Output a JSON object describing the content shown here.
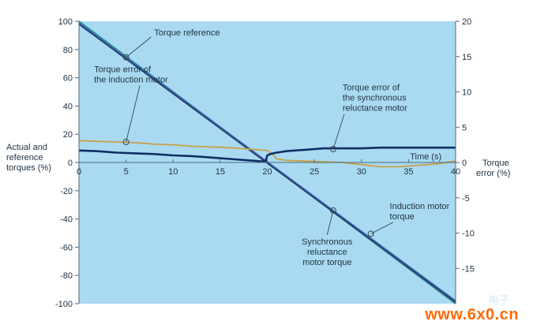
{
  "chart_data": {
    "type": "line",
    "xlabel": "Time (s)",
    "ylabel_left": "Actual and reference torques (%)",
    "ylabel_left_lines": [
      "Actual and",
      "reference",
      "torques (%)"
    ],
    "ylabel_right_lines": [
      "Torque",
      "error (%)"
    ],
    "xlim": [
      0,
      40
    ],
    "ylim_left": [
      -100,
      100
    ],
    "ylim_right": [
      -20,
      20
    ],
    "x_ticks": [
      0,
      5,
      10,
      15,
      20,
      25,
      30,
      35,
      40
    ],
    "y_left_ticks": [
      -100,
      -80,
      -60,
      -40,
      -20,
      0,
      20,
      40,
      60,
      80,
      100
    ],
    "y_right_ticks": [
      -15,
      -10,
      -5,
      0,
      5,
      10,
      15,
      20
    ],
    "colors": {
      "background": "#a9daf1",
      "torque_reference": "#2c9a9c",
      "induction_motor_torque": "#2a3a5e",
      "synchronous_reluctance_motor_torque": "#3a5fb0",
      "error_induction_motor": "#c9a24a",
      "error_synchronous_reluctance_motor": "#0f2f66"
    },
    "series": [
      {
        "name": "Torque reference",
        "axis": "left",
        "x": [
          0,
          40
        ],
        "y": [
          100,
          -100
        ]
      },
      {
        "name": "Induction motor torque",
        "axis": "left",
        "x": [
          0,
          40
        ],
        "y": [
          98,
          -99
        ]
      },
      {
        "name": "Synchronous reluctance motor torque",
        "axis": "left",
        "x": [
          0,
          40
        ],
        "y": [
          99,
          -98
        ]
      },
      {
        "name": "Torque error of the induction motor",
        "axis": "right",
        "x": [
          0,
          2,
          4,
          6,
          8,
          10,
          12,
          14,
          16,
          18,
          19,
          20,
          20.5,
          21,
          22,
          24,
          26,
          28,
          30,
          32,
          34,
          36,
          38,
          40
        ],
        "y": [
          3.1,
          3.0,
          2.9,
          2.8,
          2.6,
          2.5,
          2.3,
          2.2,
          2.1,
          1.9,
          1.8,
          1.7,
          1.3,
          0.5,
          0.3,
          0.2,
          0.1,
          0.0,
          -0.3,
          -0.6,
          -0.6,
          -0.4,
          -0.2,
          0.2
        ]
      },
      {
        "name": "Torque error of the synchronous reluctance motor",
        "axis": "right",
        "x": [
          0,
          2,
          4,
          6,
          8,
          10,
          12,
          14,
          16,
          18,
          19,
          19.8,
          20,
          20.3,
          21,
          22,
          24,
          26,
          28,
          30,
          32,
          34,
          36,
          38,
          40
        ],
        "y": [
          1.7,
          1.6,
          1.4,
          1.3,
          1.2,
          1.0,
          0.9,
          0.7,
          0.5,
          0.3,
          0.2,
          0.1,
          1.0,
          1.2,
          1.4,
          1.6,
          1.8,
          2.0,
          2.0,
          2.0,
          2.1,
          2.1,
          2.1,
          2.1,
          2.1
        ]
      }
    ],
    "annotations": [
      {
        "id": "ann-torque-reference",
        "lines": [
          "Torque reference"
        ],
        "point": {
          "x": 5,
          "y": 74.5,
          "axis": "left"
        },
        "text_anchor": {
          "x": 8,
          "y": 90,
          "axis": "left"
        }
      },
      {
        "id": "ann-error-induction",
        "lines": [
          "Torque error of",
          "the induction motor"
        ],
        "point": {
          "x": 5,
          "y": 2.9,
          "axis": "right"
        },
        "text_anchor": {
          "x": 1.6,
          "y": 12.8,
          "axis": "right"
        }
      },
      {
        "id": "ann-error-synrm",
        "lines": [
          "Torque error of",
          "the synchronous",
          "reluctance motor"
        ],
        "point": {
          "x": 27,
          "y": 1.9,
          "axis": "right"
        },
        "text_anchor": {
          "x": 28,
          "y": 10.2,
          "axis": "right"
        }
      },
      {
        "id": "ann-induction-torque",
        "lines": [
          "Induction motor",
          "torque"
        ],
        "point": {
          "x": 31,
          "y": -50.5,
          "axis": "left"
        },
        "text_anchor": {
          "x": 33,
          "y": -33,
          "axis": "left"
        }
      },
      {
        "id": "ann-synrm-torque",
        "lines": [
          "Synchronous",
          "reluctance",
          "motor torque"
        ],
        "point": {
          "x": 27,
          "y": -34,
          "axis": "left"
        },
        "text_anchor": {
          "x": 23,
          "y": -58,
          "axis": "left"
        }
      }
    ]
  },
  "watermark": {
    "site": "www.6x0.cn",
    "chinese": "电子"
  }
}
